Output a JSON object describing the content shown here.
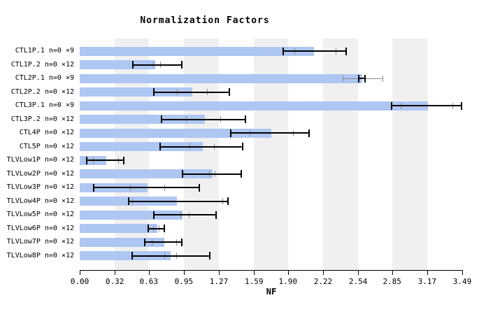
{
  "chart_data": {
    "type": "bar",
    "orientation": "horizontal",
    "title": "Normalization Factors",
    "xlabel": "NF",
    "xlim": [
      0,
      3.49
    ],
    "grid": "alternating vertical stripes",
    "xticks": [
      0.0,
      0.32,
      0.63,
      0.95,
      1.27,
      1.59,
      1.9,
      2.22,
      2.54,
      2.85,
      3.17,
      3.49
    ],
    "xtick_labels": [
      "0.00",
      "0.32",
      "0.63",
      "0.95",
      "1.27",
      "1.59",
      "1.90",
      "2.22",
      "2.54",
      "2.85",
      "3.17",
      "3.49"
    ],
    "stripe_intervals": [
      [
        0.32,
        0.63
      ],
      [
        0.95,
        1.27
      ],
      [
        1.59,
        1.9
      ],
      [
        2.22,
        2.54
      ],
      [
        2.85,
        3.17
      ]
    ],
    "colors": {
      "bar": "#aec6f2",
      "stripe": "#f0f0f0",
      "error_primary": "#000000",
      "error_secondary": "#8c8c8c",
      "background": "#ffffff"
    },
    "rows": [
      {
        "label": "CTL1P.1 n=0 ×9",
        "value": 2.14,
        "err_outer": [
          1.85,
          2.44
        ],
        "err_inner": [
          1.96,
          2.34
        ]
      },
      {
        "label": "CTL1P.2 n=0 ×12",
        "value": 0.69,
        "err_outer": [
          0.48,
          0.94
        ],
        "err_inner": [
          0.67,
          0.74
        ]
      },
      {
        "label": "CTL2P.1 n=0 ×9",
        "value": 2.58,
        "err_outer": [
          2.54,
          2.61
        ],
        "err_inner": [
          2.4,
          2.77
        ]
      },
      {
        "label": "CTL2P.2 n=0 ×12",
        "value": 1.03,
        "err_outer": [
          0.67,
          1.37
        ],
        "err_inner": [
          0.89,
          1.17
        ]
      },
      {
        "label": "CTL3P.1 n=0 ×9",
        "value": 3.18,
        "err_outer": [
          2.84,
          3.49
        ],
        "err_inner": [
          2.93,
          3.41
        ]
      },
      {
        "label": "CTL3P.2 n=0 ×12",
        "value": 1.14,
        "err_outer": [
          0.74,
          1.52
        ],
        "err_inner": [
          0.97,
          1.29
        ]
      },
      {
        "label": "CTL4P n=0 ×12",
        "value": 1.75,
        "err_outer": [
          1.37,
          2.1
        ],
        "err_inner": [
          1.55,
          1.95
        ]
      },
      {
        "label": "CTL5P n=0 ×12",
        "value": 1.12,
        "err_outer": [
          0.73,
          1.49
        ],
        "err_inner": [
          1.0,
          1.23
        ]
      },
      {
        "label": "TLVLow1P n=0 ×12",
        "value": 0.24,
        "err_outer": [
          0.06,
          0.41
        ],
        "err_inner": [
          0.12,
          0.36
        ]
      },
      {
        "label": "TLVLow2P n=0 ×12",
        "value": 1.21,
        "err_outer": [
          0.93,
          1.48
        ],
        "err_inner": [
          1.18,
          1.24
        ]
      },
      {
        "label": "TLVLow3P n=0 ×12",
        "value": 0.62,
        "err_outer": [
          0.12,
          1.1
        ],
        "err_inner": [
          0.46,
          0.78
        ]
      },
      {
        "label": "TLVLow4P n=0 ×12",
        "value": 0.89,
        "err_outer": [
          0.44,
          1.36
        ],
        "err_inner": [
          0.48,
          1.31
        ]
      },
      {
        "label": "TLVLow5P n=0 ×12",
        "value": 0.94,
        "err_outer": [
          0.67,
          1.25
        ],
        "err_inner": [
          0.92,
          1.0
        ]
      },
      {
        "label": "TLVLow6P n=0 ×12",
        "value": 0.71,
        "err_outer": [
          0.62,
          0.78
        ],
        "err_inner": [
          0.67,
          0.73
        ]
      },
      {
        "label": "TLVLow7P n=0 ×12",
        "value": 0.77,
        "err_outer": [
          0.59,
          0.94
        ],
        "err_inner": [
          0.66,
          0.89
        ]
      },
      {
        "label": "TLVLow8P n=0 ×12",
        "value": 0.83,
        "err_outer": [
          0.47,
          1.19
        ],
        "err_inner": [
          0.77,
          0.89
        ]
      }
    ]
  }
}
